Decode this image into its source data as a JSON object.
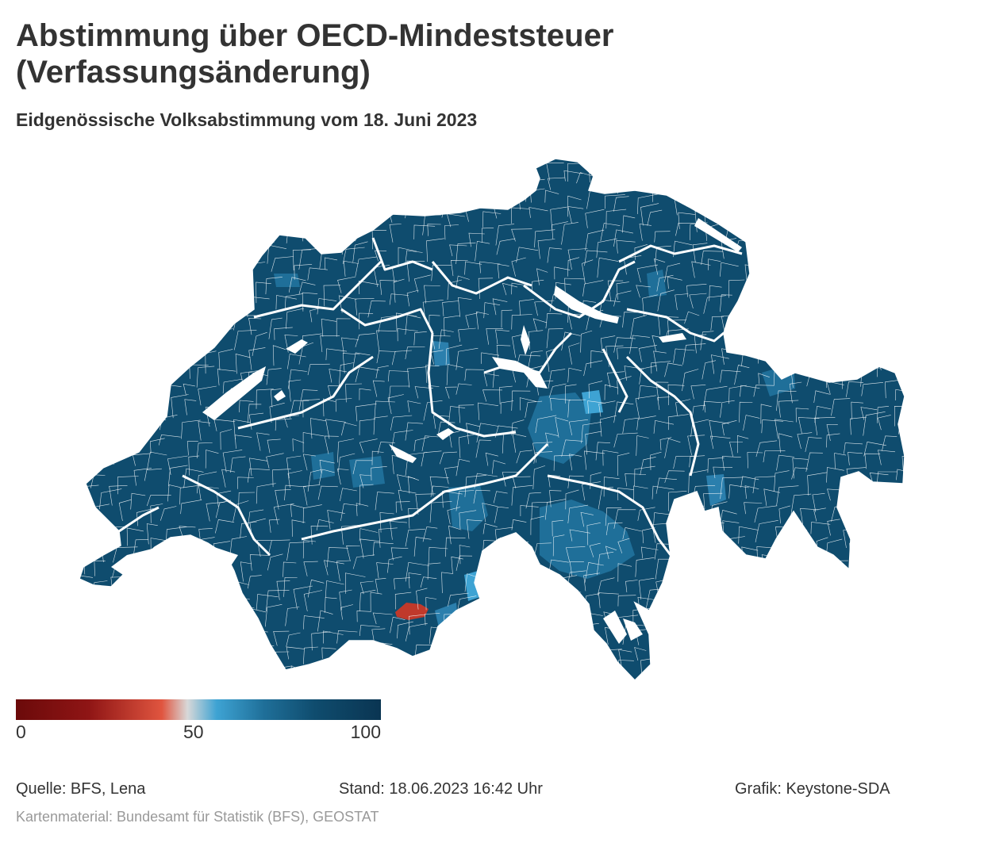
{
  "header": {
    "title": "Abstimmung über OECD-Mindeststeuer (Verfassungsänderung)",
    "subtitle": "Eidgenössische Volksabstimmung vom 18. Juni 2023"
  },
  "map": {
    "region": "Switzerland",
    "unit_level": "municipalities",
    "dominant_color": "#0f4c6e",
    "border_color": "#ffffff",
    "highlight_no_color": "#c0392b",
    "light_yes_color": "#3ea3d3",
    "mid_yes_color": "#2b7fad"
  },
  "legend": {
    "min_label": "0",
    "mid_label": "50",
    "max_label": "100",
    "gradient_colors": [
      "#6b0a0a",
      "#8f1515",
      "#e0553f",
      "#d8d8d8",
      "#3ea3d3",
      "#1f6f99",
      "#0f4c6e",
      "#0a3552"
    ]
  },
  "footer": {
    "source": "Quelle: BFS, Lena",
    "status": "Stand: 18.06.2023 16:42 Uhr",
    "credit": "Grafik: Keystone-SDA",
    "map_source": "Kartenmaterial: Bundesamt für Statistik (BFS), GEOSTAT"
  }
}
